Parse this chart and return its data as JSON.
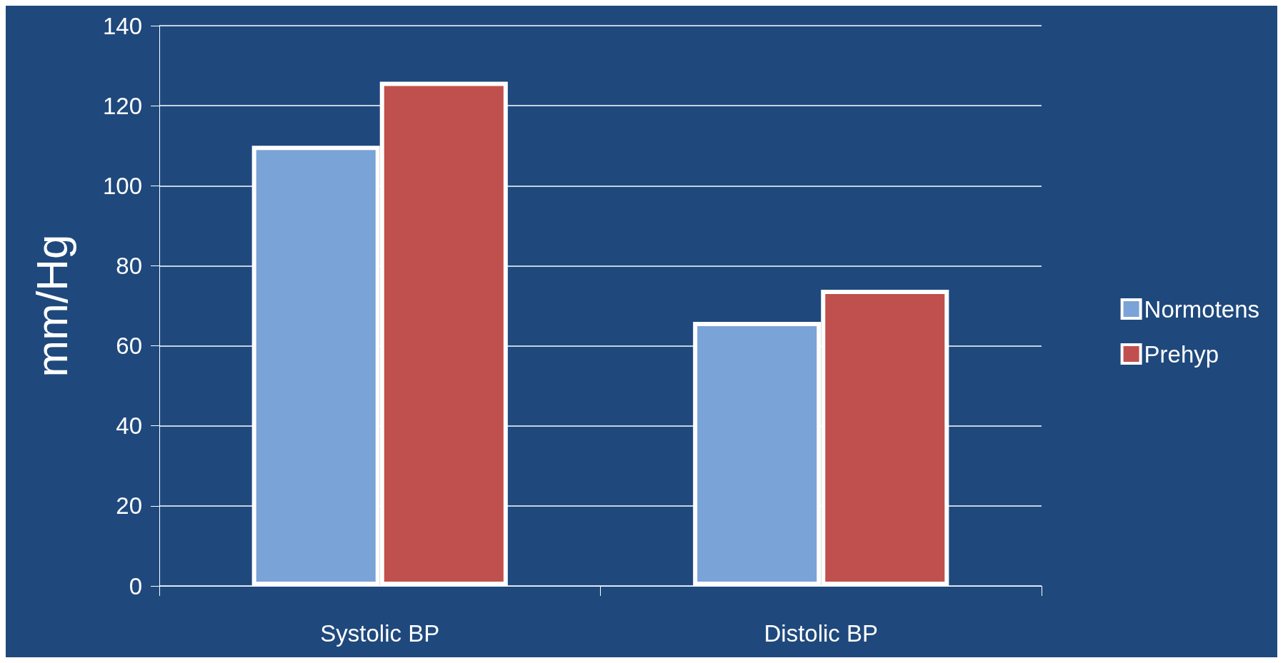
{
  "chart_data": {
    "type": "bar",
    "ylabel": "mm/Hg",
    "categories": [
      "Systolic BP",
      "Distolic BP"
    ],
    "series": [
      {
        "name": "Normotens",
        "color": "#7aa3d8",
        "values": [
          110,
          66
        ]
      },
      {
        "name": "Prehyp",
        "color": "#c0504d",
        "values": [
          126,
          74
        ]
      }
    ],
    "ylim": [
      0,
      140
    ],
    "yticks": [
      0,
      20,
      40,
      60,
      80,
      100,
      120,
      140
    ],
    "grid": "y",
    "legend": "right"
  }
}
